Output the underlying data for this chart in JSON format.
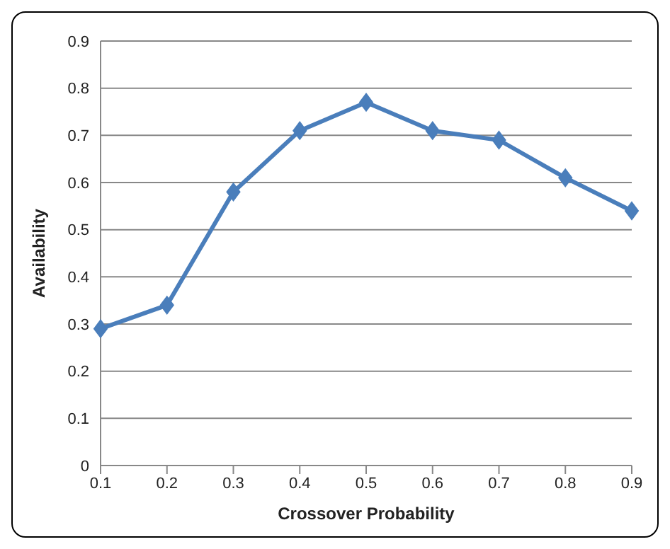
{
  "chart_data": {
    "type": "line",
    "xlabel": "Crossover Probability",
    "ylabel": "Availability",
    "categories": [
      "0.1",
      "0.2",
      "0.3",
      "0.4",
      "0.5",
      "0.6",
      "0.7",
      "0.8",
      "0.9"
    ],
    "series": [
      {
        "color": "#4a7ebb",
        "values": [
          0.29,
          0.34,
          0.58,
          0.71,
          0.77,
          0.71,
          0.69,
          0.61,
          0.54
        ]
      }
    ],
    "ylim": [
      0,
      0.9
    ],
    "yticks": [
      0,
      0.1,
      0.2,
      0.3,
      0.4,
      0.5,
      0.6,
      0.7,
      0.8,
      0.9
    ],
    "grid": "y",
    "marker": "diamond",
    "line_style": "solid"
  }
}
